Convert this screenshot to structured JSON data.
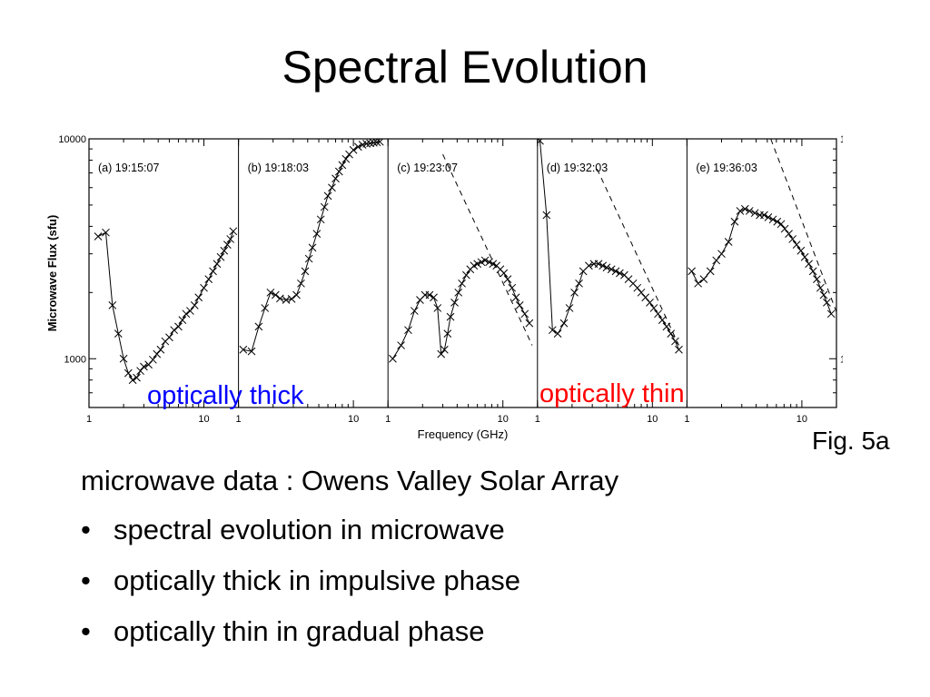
{
  "slide": {
    "title": "Spectral Evolution",
    "fig_label": "Fig. 5a",
    "annotations": {
      "optically_thick": "optically thick",
      "optically_thin": "optically thin",
      "thick_color": "#0000ff",
      "thin_color": "#ff0000"
    },
    "text": {
      "heading": "microwave data : Owens Valley Solar Array",
      "bullets": [
        "spectral  evolution in microwave",
        "optically thick in impulsive phase",
        "optically thin in gradual phase"
      ]
    }
  },
  "chart_data": {
    "type": "line",
    "xlabel": "Frequency (GHz)",
    "ylabel": "Microwave Flux (sfu)",
    "x_scale": "log",
    "y_scale": "log",
    "xlim": [
      1,
      20
    ],
    "ylim": [
      600,
      10000
    ],
    "x_ticks": [
      "1",
      "10"
    ],
    "y_ticks": [
      "1000",
      "10000"
    ],
    "panels": [
      {
        "label": "(a) 19:15:07",
        "x": [
          1.2,
          1.4,
          1.6,
          1.8,
          2.0,
          2.2,
          2.4,
          2.6,
          2.8,
          3.0,
          3.3,
          3.6,
          3.9,
          4.2,
          4.6,
          5.0,
          5.5,
          6.0,
          6.5,
          7.0,
          7.6,
          8.3,
          9.0,
          10.0,
          11.0,
          12.0,
          13.0,
          14.0,
          15.0,
          16.0,
          17.0,
          18.0
        ],
        "y": [
          3600,
          3750,
          1750,
          1300,
          1000,
          860,
          800,
          820,
          880,
          920,
          940,
          990,
          1050,
          1100,
          1200,
          1250,
          1350,
          1400,
          1500,
          1600,
          1650,
          1750,
          1900,
          2100,
          2300,
          2500,
          2700,
          2900,
          3100,
          3300,
          3500,
          3800
        ]
      },
      {
        "label": "(b) 19:18:03",
        "x": [
          1.1,
          1.3,
          1.5,
          1.7,
          1.9,
          2.1,
          2.3,
          2.6,
          2.9,
          3.2,
          3.5,
          3.8,
          4.1,
          4.4,
          4.8,
          5.2,
          5.6,
          6.0,
          6.5,
          7.0,
          7.5,
          8.0,
          8.6,
          9.2,
          10.0,
          11.0,
          12.0,
          13.0,
          14.0,
          15.0,
          16.0,
          17.0
        ],
        "y": [
          1100,
          1080,
          1400,
          1700,
          2000,
          1950,
          1880,
          1850,
          1870,
          1950,
          2200,
          2500,
          2850,
          3200,
          3700,
          4300,
          4900,
          5500,
          6000,
          6600,
          7100,
          7600,
          8100,
          8500,
          8900,
          9200,
          9400,
          9500,
          9550,
          9600,
          9650,
          9700
        ]
      },
      {
        "label": "(c) 19:23:07",
        "x": [
          1.1,
          1.3,
          1.5,
          1.7,
          1.9,
          2.1,
          2.3,
          2.5,
          2.7,
          2.9,
          3.1,
          3.3,
          3.5,
          3.8,
          4.1,
          4.4,
          4.8,
          5.2,
          5.6,
          6.0,
          6.5,
          7.0,
          7.6,
          8.2,
          8.8,
          9.5,
          10.2,
          11.0,
          12.0,
          13.0,
          14.0,
          15.5,
          17.0
        ],
        "y": [
          1000,
          1150,
          1350,
          1650,
          1850,
          1950,
          1950,
          1900,
          1700,
          1050,
          1100,
          1300,
          1550,
          1800,
          2000,
          2200,
          2400,
          2550,
          2650,
          2700,
          2750,
          2800,
          2750,
          2700,
          2650,
          2550,
          2450,
          2300,
          2100,
          1900,
          1750,
          1600,
          1450
        ],
        "dashed_line": {
          "x": [
            3.0,
            18.0
          ],
          "y": [
            8500,
            1150
          ]
        }
      },
      {
        "label": "(d) 19:32:03",
        "x": [
          1.05,
          1.2,
          1.35,
          1.5,
          1.7,
          1.9,
          2.1,
          2.3,
          2.5,
          2.8,
          3.1,
          3.4,
          3.7,
          4.0,
          4.4,
          4.8,
          5.2,
          5.7,
          6.2,
          6.8,
          7.4,
          8.0,
          8.7,
          9.5,
          10.3,
          11.2,
          12.2,
          13.3,
          14.5,
          15.8,
          17.0
        ],
        "y": [
          9800,
          4500,
          1350,
          1300,
          1450,
          1700,
          2000,
          2200,
          2500,
          2650,
          2700,
          2700,
          2650,
          2600,
          2550,
          2500,
          2450,
          2400,
          2300,
          2200,
          2100,
          2000,
          1900,
          1800,
          1700,
          1600,
          1500,
          1400,
          1300,
          1200,
          1100
        ],
        "dashed_line": {
          "x": [
            3.3,
            17.0
          ],
          "y": [
            7300,
            1150
          ]
        }
      },
      {
        "label": "(e) 19:36:03",
        "x": [
          1.1,
          1.25,
          1.4,
          1.6,
          1.8,
          2.0,
          2.3,
          2.6,
          2.9,
          3.2,
          3.5,
          3.9,
          4.3,
          4.7,
          5.1,
          5.6,
          6.1,
          6.6,
          7.1,
          7.7,
          8.3,
          9.0,
          9.8,
          10.6,
          11.5,
          12.5,
          13.5,
          14.5,
          15.5,
          16.5,
          18.0
        ],
        "y": [
          2500,
          2200,
          2300,
          2500,
          2800,
          3000,
          3400,
          4200,
          4700,
          4800,
          4700,
          4600,
          4500,
          4500,
          4400,
          4300,
          4200,
          4100,
          3900,
          3700,
          3500,
          3300,
          3100,
          2900,
          2700,
          2500,
          2300,
          2100,
          1950,
          1800,
          1600
        ],
        "dashed_line": {
          "x": [
            5.0,
            25.0
          ],
          "y": [
            11000,
            1200
          ]
        }
      }
    ]
  }
}
